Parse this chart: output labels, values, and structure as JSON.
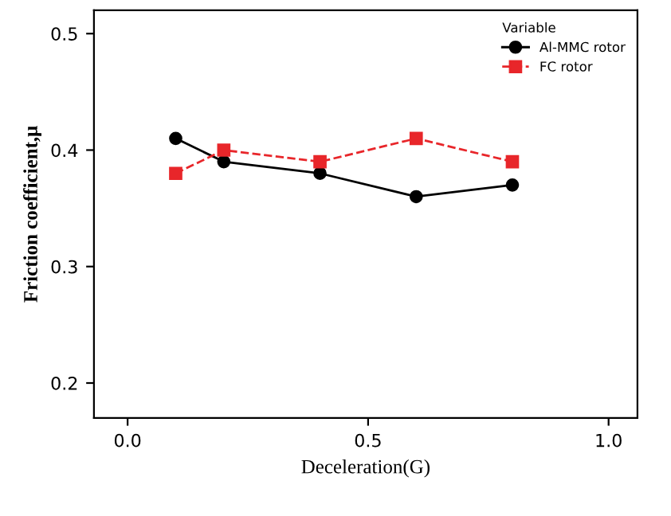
{
  "chart_data": {
    "type": "line",
    "xlabel": "Deceleration(G)",
    "ylabel": "Friction coefficient,μ",
    "legend_title": "Variable",
    "x": [
      0.1,
      0.2,
      0.4,
      0.6,
      0.8
    ],
    "series": [
      {
        "name": "Al-MMC rotor",
        "color": "#000000",
        "values": [
          0.41,
          0.39,
          0.38,
          0.36,
          0.37
        ],
        "marker": "circle",
        "line_style": "solid"
      },
      {
        "name": "FC rotor",
        "color": "#e8262a",
        "values": [
          0.38,
          0.4,
          0.39,
          0.41,
          0.39
        ],
        "marker": "square",
        "line_style": "dashed"
      }
    ],
    "xlim": [
      -0.07,
      1.06
    ],
    "ylim": [
      0.17,
      0.52
    ],
    "xticks": [
      {
        "value": 0,
        "label": "0.0"
      },
      0.5,
      {
        "value": 1,
        "label": "1.0"
      }
    ],
    "yticks": [
      0.2,
      0.3,
      0.4,
      0.5
    ],
    "legend": "top right",
    "grid": false
  }
}
